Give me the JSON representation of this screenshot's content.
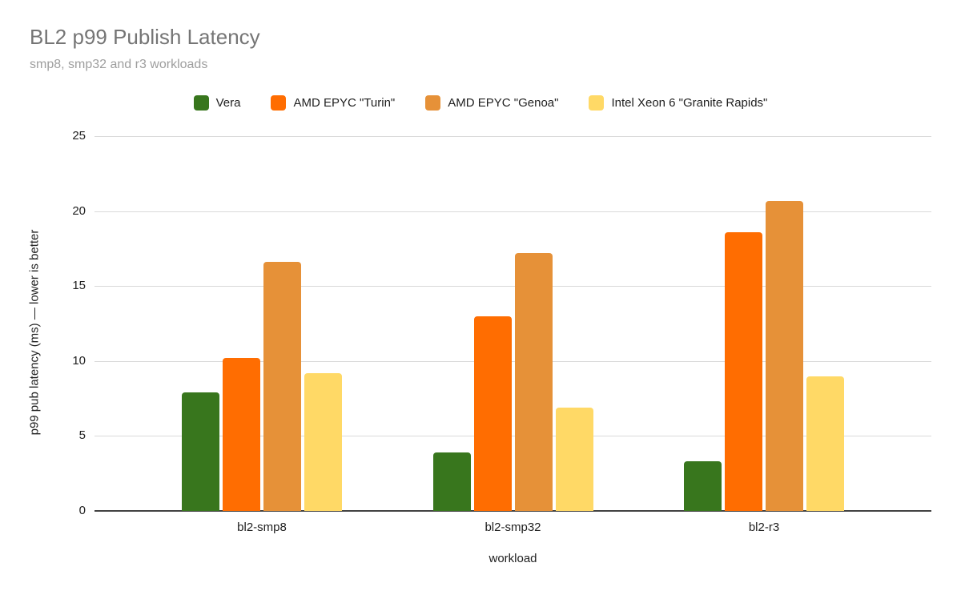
{
  "header": {
    "title": "BL2 p99 Publish Latency",
    "subtitle": "smp8, smp32 and r3 workloads"
  },
  "chart_data": {
    "type": "bar",
    "title": "BL2 p99 Publish Latency",
    "subtitle": "smp8, smp32 and r3 workloads",
    "categories": [
      "bl2-smp8",
      "bl2-smp32",
      "bl2-r3"
    ],
    "series": [
      {
        "name": "Vera",
        "color": "#38761d",
        "values": [
          7.9,
          3.9,
          3.3
        ]
      },
      {
        "name": "AMD EPYC \"Turin\"",
        "color": "#ff6d01",
        "values": [
          10.2,
          13.0,
          18.6
        ]
      },
      {
        "name": "AMD EPYC \"Genoa\"",
        "color": "#e69138",
        "values": [
          16.6,
          17.2,
          20.7
        ]
      },
      {
        "name": "Intel Xeon 6 \"Granite Rapids\"",
        "color": "#ffd966",
        "values": [
          9.2,
          6.9,
          9.0
        ]
      }
    ],
    "xlabel": "workload",
    "ylabel": "p99 pub latency (ms) — lower is better",
    "ylim": [
      0,
      25
    ],
    "ytick_step": 5,
    "yticks": [
      "0",
      "5",
      "10",
      "15",
      "20",
      "25"
    ],
    "grid": true,
    "legend_position": "top"
  },
  "colors": {
    "title_text": "#757575",
    "subtitle_text": "#9e9e9e",
    "axis_text": "#212121",
    "legend_text": "#212121",
    "gridline": "#d9d9d9",
    "baseline": "#424242",
    "background": "#ffffff"
  }
}
